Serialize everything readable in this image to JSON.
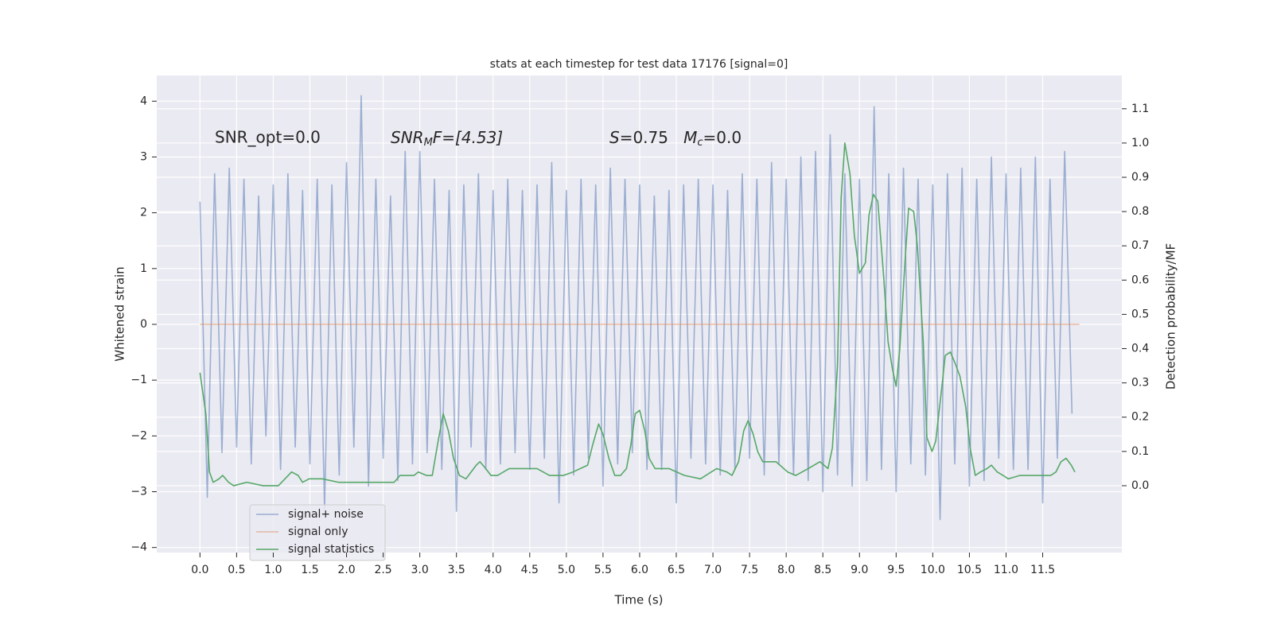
{
  "chart_data": {
    "type": "line",
    "title": "stats at each timestep for test data 17176 [signal=0]",
    "xlabel": "Time (s)",
    "ylabel": "Whitened strain",
    "y2label": "Detection probability/MF",
    "annotations": [
      "SNR_opt=0.0",
      [
        "SNR",
        "M",
        "F=[4.53]"
      ],
      [
        "S",
        "=0.75   ",
        "M",
        "c",
        "=0.0"
      ]
    ],
    "xlim": [
      -0.59,
      12.58
    ],
    "ylim": [
      -4.09,
      4.46
    ],
    "y2lim": [
      -0.195,
      1.197
    ],
    "xticks": [
      {
        "value": 0,
        "label": "0.0"
      },
      {
        "value": 0.5,
        "label": "0.5"
      },
      {
        "value": 1,
        "label": "1.0"
      },
      {
        "value": 1.5,
        "label": "1.5"
      },
      {
        "value": 2,
        "label": "2.0"
      },
      {
        "value": 2.5,
        "label": "2.5"
      },
      {
        "value": 3,
        "label": "3.0"
      },
      {
        "value": 3.5,
        "label": "3.5"
      },
      {
        "value": 4,
        "label": "4.0"
      },
      {
        "value": 4.5,
        "label": "4.5"
      },
      {
        "value": 5,
        "label": "5.0"
      },
      {
        "value": 5.5,
        "label": "5.5"
      },
      {
        "value": 6,
        "label": "6.0"
      },
      {
        "value": 6.5,
        "label": "6.5"
      },
      {
        "value": 7,
        "label": "7.0"
      },
      {
        "value": 7.5,
        "label": "7.5"
      },
      {
        "value": 8,
        "label": "8.0"
      },
      {
        "value": 8.5,
        "label": "8.5"
      },
      {
        "value": 9,
        "label": "9.0"
      },
      {
        "value": 9.5,
        "label": "9.5"
      },
      {
        "value": 10,
        "label": "10.0"
      },
      {
        "value": 10.5,
        "label": "10.5"
      },
      {
        "value": 11,
        "label": "11.0"
      },
      {
        "value": 11.5,
        "label": "11.5"
      }
    ],
    "yticks": [
      {
        "value": -4,
        "label": "−4"
      },
      {
        "value": -3,
        "label": "−3"
      },
      {
        "value": -2,
        "label": "−2"
      },
      {
        "value": -1,
        "label": "−1"
      },
      0,
      1,
      2,
      3,
      4
    ],
    "y2ticks": [
      {
        "value": 0,
        "label": "0.0"
      },
      {
        "value": 0.1,
        "label": "0.1"
      },
      {
        "value": 0.2,
        "label": "0.2"
      },
      {
        "value": 0.3,
        "label": "0.3"
      },
      {
        "value": 0.4,
        "label": "0.4"
      },
      {
        "value": 0.5,
        "label": "0.5"
      },
      {
        "value": 0.6,
        "label": "0.6"
      },
      {
        "value": 0.7,
        "label": "0.7"
      },
      {
        "value": 0.8,
        "label": "0.8"
      },
      {
        "value": 0.9,
        "label": "0.9"
      },
      {
        "value": 1.0,
        "label": "1.0"
      },
      {
        "value": 1.1,
        "label": "1.1"
      }
    ],
    "grid": true,
    "legend": "lower left",
    "series": [
      {
        "name": "signal+ noise",
        "color": "#4c72b0",
        "opacity": 0.5,
        "x": [
          0,
          0.1,
          0.2,
          0.3,
          0.4,
          0.5,
          0.6,
          0.7,
          0.8,
          0.9,
          1,
          1.1,
          1.2,
          1.3,
          1.4,
          1.5,
          1.6,
          1.7,
          1.8,
          1.9,
          2,
          2.1,
          2.2,
          2.3,
          2.4,
          2.5,
          2.6,
          2.7,
          2.8,
          2.9,
          3,
          3.1,
          3.2,
          3.3,
          3.4,
          3.5,
          3.6,
          3.7,
          3.8,
          3.9,
          4,
          4.1,
          4.2,
          4.3,
          4.4,
          4.5,
          4.6,
          4.7,
          4.8,
          4.9,
          5,
          5.1,
          5.2,
          5.3,
          5.4,
          5.5,
          5.6,
          5.7,
          5.8,
          5.9,
          6,
          6.1,
          6.2,
          6.3,
          6.4,
          6.5,
          6.6,
          6.7,
          6.8,
          6.9,
          7,
          7.1,
          7.2,
          7.3,
          7.4,
          7.5,
          7.6,
          7.7,
          7.8,
          7.9,
          8,
          8.1,
          8.2,
          8.3,
          8.4,
          8.5,
          8.6,
          8.7,
          8.8,
          8.9,
          9,
          9.1,
          9.2,
          9.3,
          9.4,
          9.5,
          9.6,
          9.7,
          9.8,
          9.9,
          10,
          10.1,
          10.2,
          10.3,
          10.4,
          10.5,
          10.6,
          10.7,
          10.8,
          10.9,
          11,
          11.1,
          11.2,
          11.3,
          11.4,
          11.5,
          11.6,
          11.7,
          11.8,
          11.9
        ],
        "values": [
          2.2,
          -3.1,
          2.7,
          -2.3,
          2.8,
          -2.2,
          2.6,
          -2.5,
          2.3,
          -2.0,
          2.5,
          -2.6,
          2.7,
          -2.2,
          2.4,
          -2.5,
          2.6,
          -3.3,
          2.5,
          -2.7,
          2.9,
          -2.2,
          4.1,
          -2.9,
          2.6,
          -2.4,
          2.3,
          -2.8,
          3.1,
          -2.5,
          3.1,
          -2.3,
          2.6,
          -2.6,
          2.4,
          -3.35,
          2.5,
          -2.2,
          2.7,
          -2.6,
          2.4,
          -2.5,
          2.6,
          -2.3,
          2.4,
          -2.6,
          2.5,
          -2.4,
          2.9,
          -3.2,
          2.4,
          -2.7,
          2.6,
          -2.4,
          2.5,
          -2.9,
          2.8,
          -2.5,
          2.6,
          -2.3,
          2.5,
          -2.6,
          2.3,
          -2.6,
          2.4,
          -3.2,
          2.5,
          -2.4,
          2.6,
          -2.5,
          2.5,
          -2.7,
          2.4,
          -2.6,
          2.7,
          -2.4,
          2.6,
          -2.7,
          2.9,
          -2.5,
          2.6,
          -2.7,
          3.0,
          -2.8,
          3.1,
          -3.0,
          3.4,
          -2.7,
          2.7,
          -2.9,
          2.6,
          -2.8,
          3.9,
          -2.6,
          2.7,
          -3.0,
          2.8,
          -2.5,
          2.6,
          -2.7,
          2.5,
          -3.5,
          2.7,
          -2.5,
          2.8,
          -2.9,
          2.6,
          -2.8,
          3.0,
          -2.4,
          2.7,
          -2.6,
          2.8,
          -2.6,
          3.0,
          -3.2,
          2.6,
          -2.4,
          3.1,
          -1.6
        ]
      },
      {
        "name": "signal only",
        "color": "#dd8452",
        "opacity": 0.5,
        "x": [
          0,
          12
        ],
        "values": [
          0,
          0
        ]
      },
      {
        "name": "signal statistics",
        "color": "#55a868",
        "opacity": 1,
        "axis": "y2",
        "x": [
          0.0,
          0.08,
          0.13,
          0.18,
          0.26,
          0.31,
          0.39,
          0.46,
          0.64,
          0.86,
          1.07,
          1.16,
          1.25,
          1.34,
          1.4,
          1.49,
          1.67,
          1.89,
          2.18,
          2.4,
          2.54,
          2.65,
          2.73,
          2.92,
          2.98,
          3.09,
          3.17,
          3.25,
          3.32,
          3.39,
          3.46,
          3.54,
          3.63,
          3.7,
          3.77,
          3.82,
          3.9,
          3.97,
          4.06,
          4.22,
          4.44,
          4.6,
          4.77,
          4.88,
          4.96,
          5.09,
          5.29,
          5.36,
          5.44,
          5.5,
          5.58,
          5.66,
          5.74,
          5.82,
          5.88,
          5.94,
          6.0,
          6.07,
          6.13,
          6.21,
          6.4,
          6.61,
          6.83,
          7.05,
          7.19,
          7.26,
          7.35,
          7.42,
          7.48,
          7.55,
          7.61,
          7.68,
          7.86,
          8.02,
          8.13,
          8.3,
          8.46,
          8.57,
          8.63,
          8.7,
          8.75,
          8.8,
          8.87,
          8.93,
          9.0,
          9.08,
          9.13,
          9.19,
          9.25,
          9.33,
          9.39,
          9.45,
          9.5,
          9.55,
          9.62,
          9.67,
          9.74,
          9.79,
          9.87,
          9.92,
          9.99,
          10.04,
          10.12,
          10.17,
          10.24,
          10.3,
          10.37,
          10.45,
          10.51,
          10.58,
          10.65,
          10.74,
          10.8,
          10.88,
          10.96,
          11.03,
          11.19,
          11.36,
          11.53,
          11.61,
          11.68,
          11.75,
          11.82,
          11.89,
          11.94
        ],
        "values": [
          0.33,
          0.21,
          0.04,
          0.01,
          0.02,
          0.03,
          0.01,
          0.0,
          0.01,
          0.0,
          0.0,
          0.02,
          0.04,
          0.03,
          0.01,
          0.02,
          0.02,
          0.01,
          0.01,
          0.01,
          0.01,
          0.01,
          0.03,
          0.03,
          0.04,
          0.03,
          0.03,
          0.13,
          0.21,
          0.16,
          0.08,
          0.03,
          0.02,
          0.04,
          0.06,
          0.07,
          0.05,
          0.03,
          0.03,
          0.05,
          0.05,
          0.05,
          0.03,
          0.03,
          0.03,
          0.04,
          0.06,
          0.12,
          0.18,
          0.15,
          0.08,
          0.03,
          0.03,
          0.05,
          0.12,
          0.21,
          0.22,
          0.16,
          0.08,
          0.05,
          0.05,
          0.03,
          0.02,
          0.05,
          0.04,
          0.03,
          0.07,
          0.16,
          0.19,
          0.15,
          0.1,
          0.07,
          0.07,
          0.04,
          0.03,
          0.05,
          0.07,
          0.05,
          0.11,
          0.35,
          0.84,
          1.0,
          0.91,
          0.73,
          0.62,
          0.65,
          0.79,
          0.85,
          0.83,
          0.61,
          0.42,
          0.34,
          0.29,
          0.4,
          0.65,
          0.81,
          0.8,
          0.7,
          0.42,
          0.14,
          0.1,
          0.13,
          0.28,
          0.38,
          0.39,
          0.36,
          0.32,
          0.23,
          0.11,
          0.03,
          0.04,
          0.05,
          0.06,
          0.04,
          0.03,
          0.02,
          0.03,
          0.03,
          0.03,
          0.03,
          0.04,
          0.07,
          0.08,
          0.06,
          0.04
        ]
      }
    ]
  }
}
